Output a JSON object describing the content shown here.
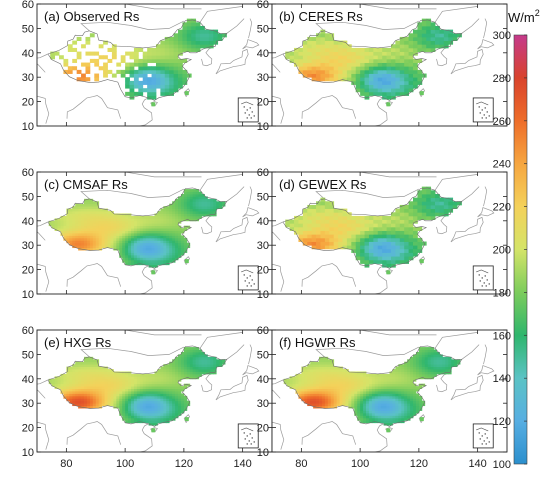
{
  "figure": {
    "panels": [
      {
        "id": "a",
        "title": "(a) Observed Rs",
        "type": "station-observed"
      },
      {
        "id": "b",
        "title": "(b) CERES Rs",
        "type": "coarse-grid"
      },
      {
        "id": "c",
        "title": "(c) CMSAF Rs",
        "type": "smooth"
      },
      {
        "id": "d",
        "title": "(d) GEWEX Rs",
        "type": "coarse-grid"
      },
      {
        "id": "e",
        "title": "(e) HXG Rs",
        "type": "smooth-strong"
      },
      {
        "id": "f",
        "title": "(f) HGWR Rs",
        "type": "smooth-strong"
      }
    ],
    "axes": {
      "x_ticks": [
        "80",
        "100",
        "120",
        "140"
      ],
      "y_ticks": [
        "10",
        "20",
        "30",
        "40",
        "50",
        "60"
      ],
      "x_range": [
        70,
        150
      ],
      "y_range": [
        10,
        60
      ]
    },
    "colorbar": {
      "unit": "W/m",
      "unit_superscript": "2",
      "min": 100,
      "max": 300,
      "tick_labels": [
        "300",
        "280",
        "260",
        "240",
        "220",
        "200",
        "180",
        "160",
        "140",
        "120",
        "100"
      ],
      "colors": [
        "#c53a8c",
        "#d9432c",
        "#ee6d2a",
        "#f6a640",
        "#f4d15a",
        "#d4e468",
        "#7ccc5c",
        "#2fb66d",
        "#5bc3c5",
        "#57aee2",
        "#2b8fcd"
      ]
    }
  }
}
